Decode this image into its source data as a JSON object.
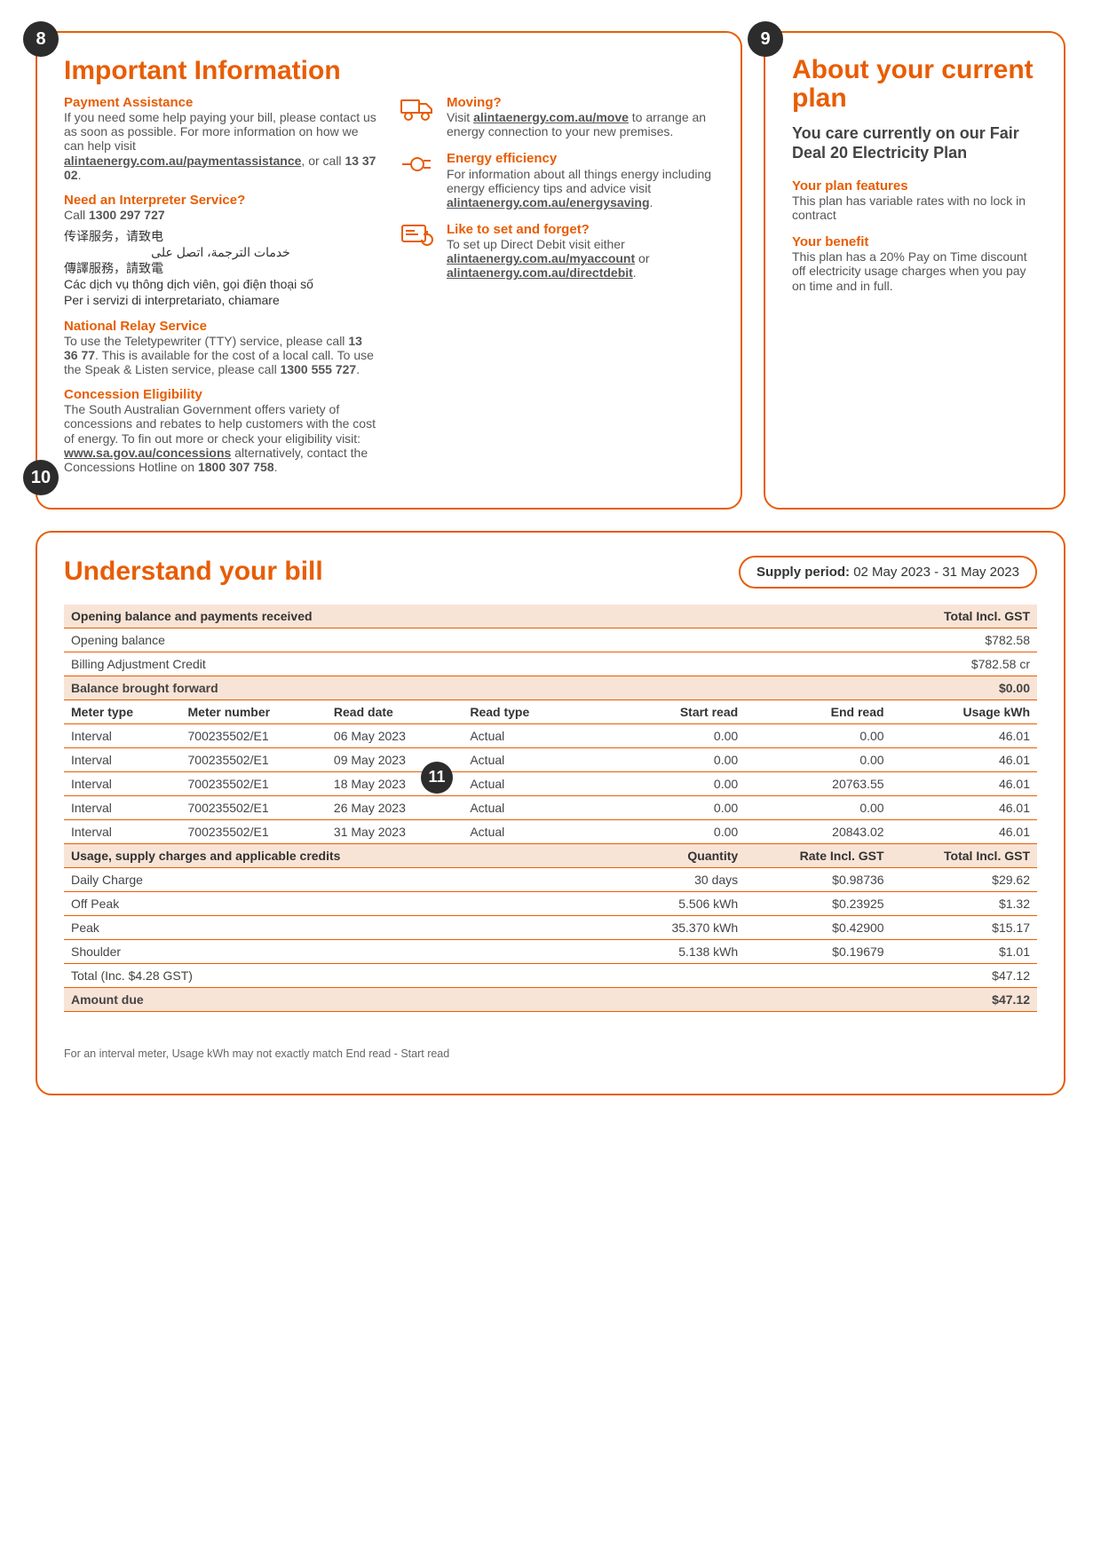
{
  "badges": {
    "b8": "8",
    "b9": "9",
    "b10": "10",
    "b11": "11"
  },
  "colors": {
    "accent": "#e85d04",
    "badge_bg": "#2c2c2c",
    "text": "#555555",
    "header_band": "#f8e4d6"
  },
  "important": {
    "title": "Important Information",
    "payment_assistance": {
      "heading": "Payment Assistance",
      "body_1": "If you need some help paying your bill, please contact us as soon as possible. For more information on how we can help visit ",
      "link": "alintaenergy.com.au/paymentassistance",
      "body_2": ", or call ",
      "phone": "13 37 02",
      "body_3": "."
    },
    "interpreter": {
      "heading": "Need an Interpreter Service?",
      "body": "Call ",
      "phone": "1300 297 727",
      "lang1": "传译服务，请致电",
      "lang_ar": "خدمات الترجمة، اتصل على",
      "lang2": "傳譯服務，請致電",
      "lang3": "Các dịch vụ thông dịch viên, gọi điện thoại số",
      "lang4": "Per i servizi di interpretariato, chiamare"
    },
    "nrs": {
      "heading": "National Relay Service",
      "body_1": "To use the Teletypewriter (TTY) service, please call ",
      "phone1": "13 36 77",
      "body_2": ". This is available for the cost of a local call. To use the Speak & Listen service, please call ",
      "phone2": "1300 555 727",
      "body_3": "."
    },
    "concession": {
      "heading": "Concession Eligibility",
      "body_1": "The South Australian Government offers variety of concessions and rebates to help customers with the cost of energy. To fin out more or check your eligibility visit: ",
      "link": "www.sa.gov.au/concessions",
      "body_2": " alternatively, contact the Concessions Hotline on ",
      "phone": "1800 307 758",
      "body_3": "."
    },
    "moving": {
      "heading": "Moving?",
      "body_1": "Visit ",
      "link": "alintaenergy.com.au/move",
      "body_2": " to arrange an energy connection to your new premises."
    },
    "efficiency": {
      "heading": "Energy efficiency",
      "body_1": "For information about all things energy including energy efficiency tips and advice visit ",
      "link": "alintaenergy.com.au/energysaving",
      "body_2": "."
    },
    "directdebit": {
      "heading": "Like to set and forget?",
      "body_1": "To set up Direct Debit visit either ",
      "link1": "alintaenergy.com.au/myaccount",
      "body_2": " or ",
      "link2": "alintaenergy.com.au/directdebit",
      "body_3": "."
    }
  },
  "plan": {
    "title": "About your current plan",
    "summary": "You care currently on our Fair Deal 20 Electricity Plan",
    "features_h": "Your plan features",
    "features_b": "This plan has variable rates with no lock in contract",
    "benefit_h": "Your benefit",
    "benefit_b": "This plan has a 20% Pay on Time discount off electricity usage charges when you pay on time and in full."
  },
  "bill": {
    "title": "Understand your bill",
    "supply_label": "Supply period:",
    "supply_value": "02 May 2023 - 31 May 2023",
    "footnote": "For an interval meter, Usage kWh may not exactly match End read - Start read",
    "section_opening": {
      "label": "Opening balance and payments received",
      "total_h": "Total Incl. GST"
    },
    "opening_rows": [
      {
        "label": "Opening balance",
        "value": "$782.58"
      },
      {
        "label": "Billing Adjustment Credit",
        "value": "$782.58 cr"
      }
    ],
    "balance_fwd": {
      "label": "Balance brought forward",
      "value": "$0.00"
    },
    "meter_headers": {
      "c1": "Meter type",
      "c2": "Meter number",
      "c3": "Read date",
      "c4": "Read type",
      "c5": "Start read",
      "c6": "End read",
      "c7": "Usage kWh"
    },
    "meter_rows": [
      {
        "c1": "Interval",
        "c2": "700235502/E1",
        "c3": "06 May 2023",
        "c4": "Actual",
        "c5": "0.00",
        "c6": "0.00",
        "c7": "46.01"
      },
      {
        "c1": "Interval",
        "c2": "700235502/E1",
        "c3": "09 May 2023",
        "c4": "Actual",
        "c5": "0.00",
        "c6": "0.00",
        "c7": "46.01"
      },
      {
        "c1": "Interval",
        "c2": "700235502/E1",
        "c3": "18 May 2023",
        "c4": "Actual",
        "c5": "0.00",
        "c6": "20763.55",
        "c7": "46.01"
      },
      {
        "c1": "Interval",
        "c2": "700235502/E1",
        "c3": "26 May 2023",
        "c4": "Actual",
        "c5": "0.00",
        "c6": "0.00",
        "c7": "46.01"
      },
      {
        "c1": "Interval",
        "c2": "700235502/E1",
        "c3": "31 May 2023",
        "c4": "Actual",
        "c5": "0.00",
        "c6": "20843.02",
        "c7": "46.01"
      }
    ],
    "usage_header": {
      "label": "Usage, supply charges and applicable credits",
      "qty": "Quantity",
      "rate": "Rate Incl. GST",
      "total": "Total Incl. GST"
    },
    "usage_rows": [
      {
        "label": "Daily Charge",
        "qty": "30 days",
        "rate": "$0.98736",
        "total": "$29.62"
      },
      {
        "label": "Off Peak",
        "qty": "5.506 kWh",
        "rate": "$0.23925",
        "total": "$1.32"
      },
      {
        "label": "Peak",
        "qty": "35.370 kWh",
        "rate": "$0.42900",
        "total": "$15.17"
      },
      {
        "label": "Shoulder",
        "qty": "5.138 kWh",
        "rate": "$0.19679",
        "total": "$1.01"
      }
    ],
    "total_inc": {
      "label": "Total (Inc. $4.28 GST)",
      "value": "$47.12"
    },
    "amount_due": {
      "label": "Amount due",
      "value": "$47.12"
    }
  }
}
